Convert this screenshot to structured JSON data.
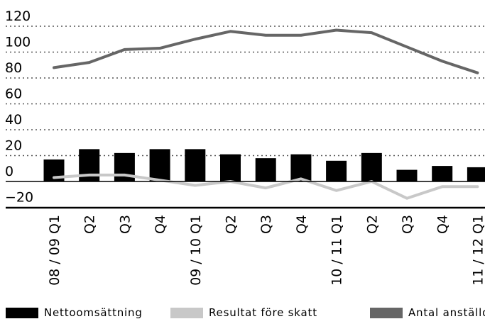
{
  "chart_data": {
    "type": "bar",
    "categories": [
      "08 / 09 Q1",
      "Q2",
      "Q3",
      "Q4",
      "09 / 10 Q1",
      "Q2",
      "Q3",
      "Q4",
      "10 / 11 Q1",
      "Q2",
      "Q3",
      "Q4",
      "11 / 12 Q1"
    ],
    "series": [
      {
        "name": "Nettoomsättning",
        "type": "bar",
        "color": "#000000",
        "values": [
          17,
          25,
          22,
          25,
          25,
          21,
          18,
          21,
          16,
          22,
          9,
          12,
          11
        ]
      },
      {
        "name": "Resultat före skatt",
        "type": "line",
        "color": "#c8c8c8",
        "values": [
          3,
          5,
          5,
          1,
          -3,
          0,
          -5,
          2,
          -7,
          0,
          -13,
          -4,
          -4
        ]
      },
      {
        "name": "Antal anställda",
        "type": "line",
        "color": "#666666",
        "values": [
          88,
          92,
          102,
          103,
          110,
          116,
          113,
          113,
          117,
          115,
          104,
          93,
          84
        ]
      }
    ],
    "yticks": [
      120,
      100,
      80,
      60,
      40,
      20,
      0,
      -20
    ],
    "ylim": [
      -20,
      120
    ],
    "grid": true,
    "legend_position": "bottom",
    "title": "",
    "xlabel": "",
    "ylabel": ""
  }
}
